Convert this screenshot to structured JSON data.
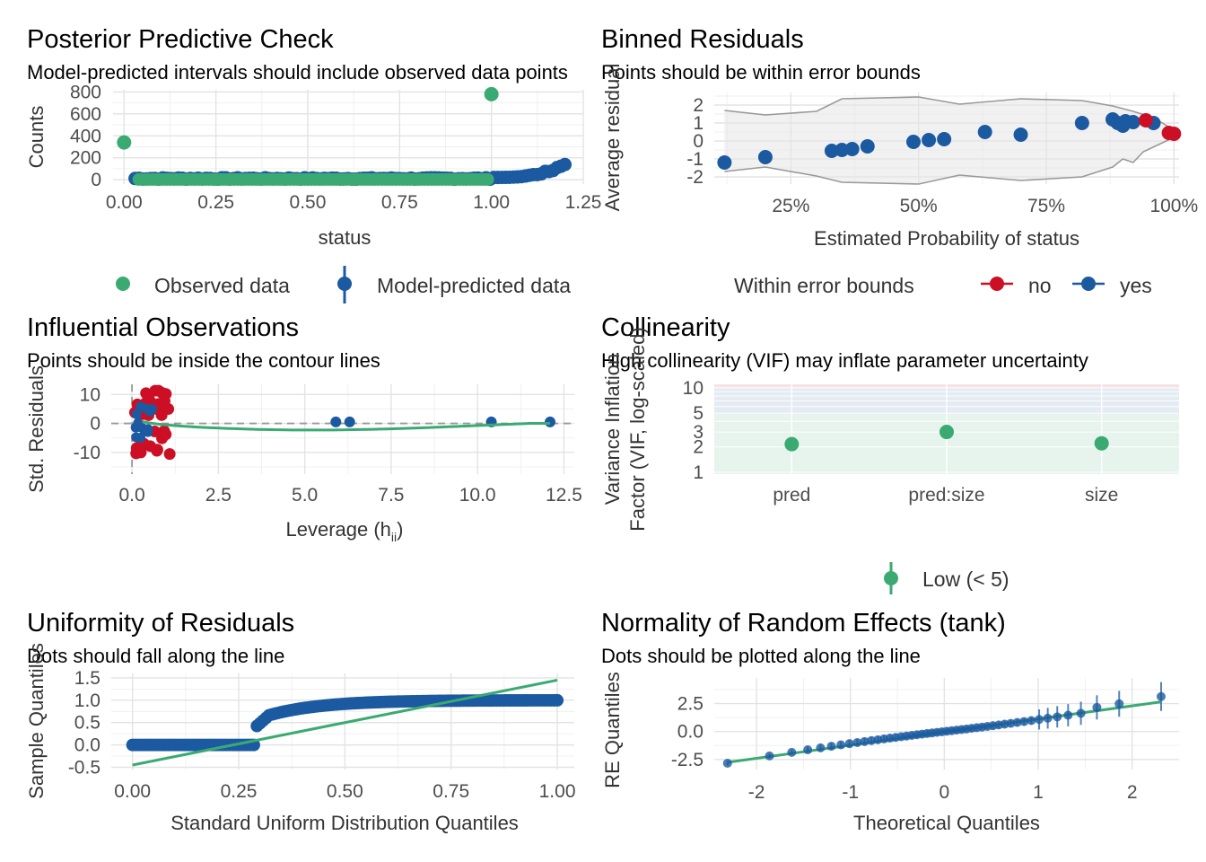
{
  "colors": {
    "green": "#3aaa72",
    "blue": "#1b5aa0",
    "red": "#cc0f24",
    "gray": "#999999"
  },
  "chart_data": [
    {
      "id": "ppc",
      "type": "scatter",
      "title": "Posterior Predictive Check",
      "subtitle": "Model-predicted intervals should include observed data points",
      "xlabel": "status",
      "ylabel": "Counts",
      "xlim": [
        -0.03,
        1.25
      ],
      "ylim": [
        -40,
        820
      ],
      "xticks": [
        "0.00",
        "0.25",
        "0.50",
        "0.75",
        "1.00",
        "1.25"
      ],
      "yticks": [
        "0",
        "200",
        "400",
        "600",
        "800"
      ],
      "legend": [
        "Observed data",
        "Model-predicted data"
      ],
      "observed": [
        [
          0,
          340
        ],
        [
          1,
          780
        ]
      ],
      "predicted_max": 170
    },
    {
      "id": "binned",
      "type": "scatter",
      "title": "Binned Residuals",
      "subtitle": "Points should be within error bounds",
      "xlabel": "Estimated Probability of status",
      "ylabel": "Average residual",
      "xlim": [
        0.1,
        1.01
      ],
      "ylim": [
        -2.4,
        2.7
      ],
      "xticks": [
        "25%",
        "50%",
        "75%",
        "100%"
      ],
      "yticks": [
        "-2",
        "-1",
        "0",
        "1",
        "2"
      ],
      "legend_title": "Within error bounds",
      "legend": [
        "no",
        "yes"
      ],
      "points_yes": [
        [
          0.12,
          -1.2
        ],
        [
          0.2,
          -0.9
        ],
        [
          0.33,
          -0.55
        ],
        [
          0.35,
          -0.5
        ],
        [
          0.37,
          -0.45
        ],
        [
          0.4,
          -0.3
        ],
        [
          0.49,
          -0.05
        ],
        [
          0.52,
          0.05
        ],
        [
          0.55,
          0.1
        ],
        [
          0.63,
          0.5
        ],
        [
          0.7,
          0.35
        ],
        [
          0.82,
          1.0
        ],
        [
          0.88,
          1.2
        ],
        [
          0.89,
          1.0
        ],
        [
          0.9,
          0.85
        ],
        [
          0.905,
          1.1
        ],
        [
          0.92,
          1.05
        ],
        [
          0.96,
          1.0
        ]
      ],
      "points_no": [
        [
          0.945,
          1.15
        ],
        [
          0.99,
          0.45
        ],
        [
          1.0,
          0.4
        ]
      ]
    },
    {
      "id": "influential",
      "type": "scatter",
      "title": "Influential Observations",
      "subtitle": "Points should be inside the contour lines",
      "xlabel": "Leverage (h",
      "xlabel_sub": "ii",
      "xlabel_end": ")",
      "ylabel": "Std. Residuals",
      "xlim": [
        -0.6,
        12.8
      ],
      "ylim": [
        -17.5,
        13.5
      ],
      "xticks": [
        "0.0",
        "2.5",
        "5.0",
        "7.5",
        "10.0",
        "12.5"
      ],
      "yticks": [
        "10",
        "0",
        "-10"
      ],
      "points_blue": [
        [
          5.9,
          0.5
        ],
        [
          6.3,
          0.5
        ],
        [
          10.4,
          0.5
        ],
        [
          12.1,
          0.5
        ]
      ]
    },
    {
      "id": "collinearity",
      "type": "scatter",
      "title": "Collinearity",
      "subtitle": "High collinearity (VIF) may inflate parameter uncertainty",
      "ylabel_line1": "Variance Inflation",
      "ylabel_line2": "Factor (VIF, log-scaled)",
      "categories": [
        "pred",
        "pred:size",
        "size"
      ],
      "values": [
        2.15,
        3.0,
        2.2
      ],
      "yscale": "log",
      "yticks": [
        "1",
        "2",
        "3",
        "5",
        "10"
      ],
      "legend": [
        "Low (< 5)"
      ]
    },
    {
      "id": "uniformity",
      "type": "scatter",
      "title": "Uniformity of Residuals",
      "subtitle": "Dots should fall along the line",
      "xlabel": "Standard Uniform Distribution Quantiles",
      "ylabel": "Sample Quantiles",
      "xlim": [
        -0.05,
        1.04
      ],
      "ylim": [
        -0.55,
        1.6
      ],
      "xticks": [
        "0.00",
        "0.25",
        "0.50",
        "0.75",
        "1.00"
      ],
      "yticks": [
        "1.5",
        "1.0",
        "0.5",
        "0.0",
        "-0.5"
      ]
    },
    {
      "id": "re_normality",
      "type": "scatter",
      "title": "Normality of Random Effects (tank)",
      "subtitle": "Dots should be plotted along the line",
      "xlabel": "Theoretical Quantiles",
      "ylabel": "RE Quantiles",
      "xlim": [
        -2.45,
        2.5
      ],
      "ylim": [
        -3.4,
        4.8
      ],
      "xticks": [
        "-2",
        "-1",
        "0",
        "1",
        "2"
      ],
      "yticks": [
        "2.5",
        "0.0",
        "-2.5"
      ]
    }
  ]
}
